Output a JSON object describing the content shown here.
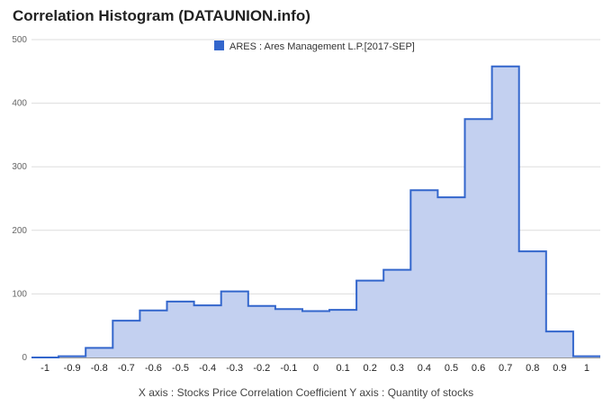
{
  "chart_data": {
    "type": "area",
    "title": "Correlation Histogram (DATAUNION.info)",
    "legend": {
      "label": "ARES : Ares Management L.P.[2017-SEP]",
      "placement": "top-center"
    },
    "caption": "X axis : Stocks Price Correlation Coefficient  Y axis : Quantity of stocks",
    "colors": {
      "fill": "#c3d0f0",
      "line": "#3366cc",
      "grid": "#dddddd"
    },
    "xlim": [
      -1.05,
      1.05
    ],
    "ylim": [
      0,
      500
    ],
    "grid": true,
    "x_ticks": [
      "-1",
      "-0.9",
      "-0.8",
      "-0.7",
      "-0.6",
      "-0.5",
      "-0.4",
      "-0.3",
      "-0.2",
      "-0.1",
      "0",
      "0.1",
      "0.2",
      "0.3",
      "0.4",
      "0.5",
      "0.6",
      "0.7",
      "0.8",
      "0.9",
      "1"
    ],
    "y_ticks": [
      "0",
      "100",
      "200",
      "300",
      "400",
      "500"
    ],
    "series": [
      {
        "name": "ARES : Ares Management L.P.[2017-SEP]",
        "bins": [
          {
            "x": -1.0,
            "y": 0
          },
          {
            "x": -0.9,
            "y": 2
          },
          {
            "x": -0.8,
            "y": 15
          },
          {
            "x": -0.7,
            "y": 58
          },
          {
            "x": -0.6,
            "y": 74
          },
          {
            "x": -0.5,
            "y": 88
          },
          {
            "x": -0.4,
            "y": 82
          },
          {
            "x": -0.3,
            "y": 104
          },
          {
            "x": -0.2,
            "y": 81
          },
          {
            "x": -0.1,
            "y": 76
          },
          {
            "x": 0.0,
            "y": 73
          },
          {
            "x": 0.1,
            "y": 75
          },
          {
            "x": 0.2,
            "y": 121
          },
          {
            "x": 0.3,
            "y": 138
          },
          {
            "x": 0.4,
            "y": 263
          },
          {
            "x": 0.5,
            "y": 252
          },
          {
            "x": 0.6,
            "y": 375
          },
          {
            "x": 0.7,
            "y": 458
          },
          {
            "x": 0.8,
            "y": 167
          },
          {
            "x": 0.9,
            "y": 41
          },
          {
            "x": 1.0,
            "y": 2
          }
        ]
      }
    ]
  }
}
